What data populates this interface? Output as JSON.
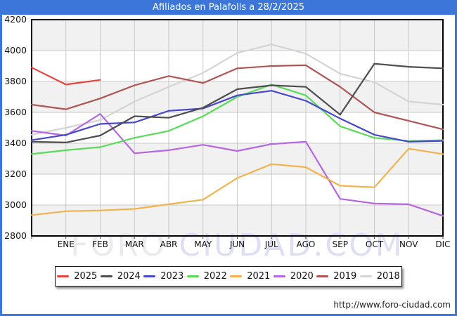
{
  "title": "Afiliados en Palafolls a 28/2/2025",
  "footer": {
    "url": "http://www.foro-ciudad.com"
  },
  "watermark": {
    "part1": "FORO",
    "part2": "CIUDAD.COM"
  },
  "colors": {
    "titlebar": "#3b76d8",
    "frame_border": "#3b76d8",
    "plot_border": "#000000",
    "grid": "#c9c9c9",
    "band_gray": "#f1f1f1",
    "band_white": "#ffffff",
    "axis_text": "#111111",
    "watermark_part1": "#e9e9ee",
    "watermark_part2": "#dbdcf4"
  },
  "chart_data": {
    "type": "line",
    "title": "Afiliados en Palafolls a 28/2/2025",
    "x_labels": [
      "ENE",
      "FEB",
      "MAR",
      "ABR",
      "MAY",
      "JUN",
      "JUL",
      "AGO",
      "SEP",
      "OCT",
      "NOV",
      "DIC"
    ],
    "x_note": "Each series has 13 points: the first sits on the left axis (previous December value), followed by ENE..DIC at the gridlines.",
    "ylim": [
      2800,
      4200
    ],
    "yticks": [
      2800,
      3000,
      3200,
      3400,
      3600,
      3800,
      4000,
      4200
    ],
    "grid": true,
    "legend_position": "bottom",
    "series": [
      {
        "name": "2025",
        "color": "#e64540",
        "values": [
          3890,
          3780,
          3810,
          null,
          null,
          null,
          null,
          null,
          null,
          null,
          null,
          null,
          null
        ]
      },
      {
        "name": "2024",
        "color": "#4d4d4d",
        "values": [
          3410,
          3405,
          3450,
          3575,
          3565,
          3630,
          3750,
          3775,
          3765,
          3585,
          3915,
          3895,
          3885
        ]
      },
      {
        "name": "2023",
        "color": "#4747cf",
        "values": [
          3420,
          3455,
          3525,
          3535,
          3610,
          3625,
          3710,
          3740,
          3675,
          3560,
          3455,
          3410,
          3415
        ]
      },
      {
        "name": "2022",
        "color": "#58dc58",
        "values": [
          3330,
          3355,
          3375,
          3435,
          3480,
          3575,
          3700,
          3780,
          3710,
          3510,
          3435,
          3415,
          3420
        ]
      },
      {
        "name": "2021",
        "color": "#f2b24e",
        "values": [
          2935,
          2960,
          2965,
          2975,
          3005,
          3035,
          3175,
          3265,
          3245,
          3125,
          3115,
          3365,
          3330
        ]
      },
      {
        "name": "2020",
        "color": "#b565e3",
        "values": [
          3480,
          3450,
          3590,
          3335,
          3355,
          3390,
          3350,
          3395,
          3410,
          3040,
          3010,
          3005,
          2930
        ]
      },
      {
        "name": "2019",
        "color": "#b05454",
        "values": [
          3650,
          3620,
          3690,
          3775,
          3835,
          3790,
          3885,
          3900,
          3905,
          3765,
          3600,
          3545,
          3490
        ]
      },
      {
        "name": "2018",
        "color": "#d4d4d4",
        "values": [
          3455,
          3500,
          3550,
          3670,
          3765,
          3855,
          3985,
          4040,
          3980,
          3850,
          3795,
          3670,
          3650
        ]
      }
    ]
  }
}
